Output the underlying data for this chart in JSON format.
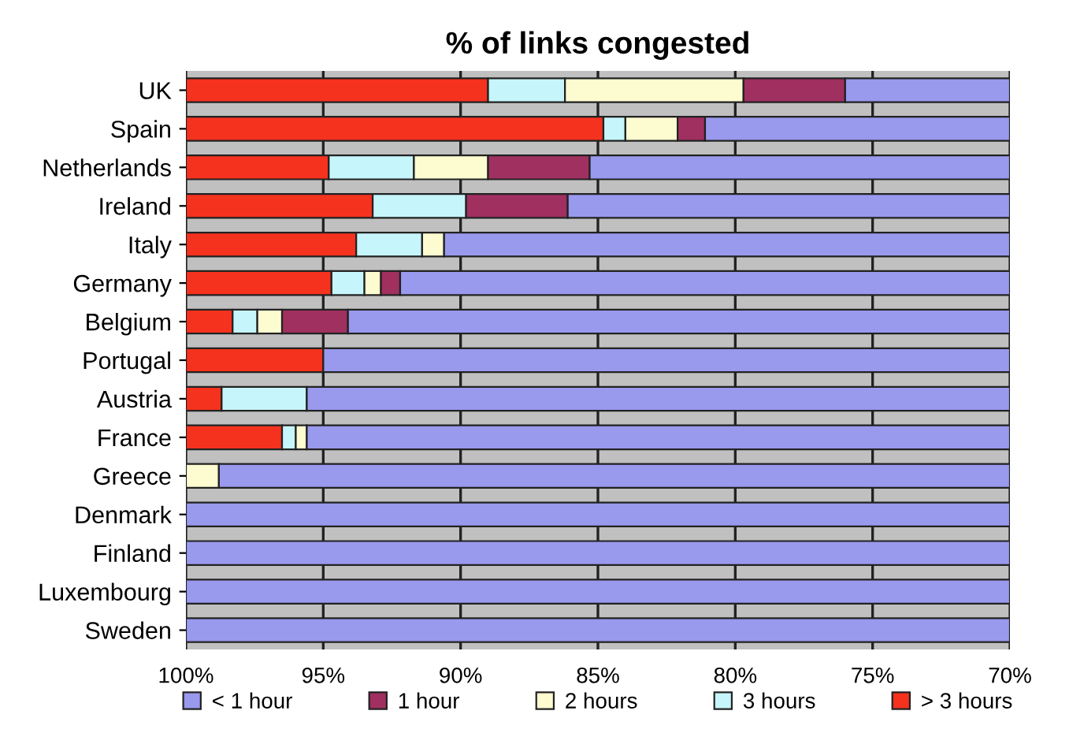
{
  "chart_data": {
    "type": "bar",
    "orientation": "horizontal",
    "title": "% of links congested",
    "categories": [
      "UK",
      "Spain",
      "Netherlands",
      "Ireland",
      "Italy",
      "Germany",
      "Belgium",
      "Portugal",
      "Austria",
      "France",
      "Greece",
      "Denmark",
      "Finland",
      "Luxembourg",
      "Sweden"
    ],
    "series": [
      {
        "name": "> 3 hours",
        "color": "#f5321e",
        "values": [
          11.0,
          15.2,
          5.2,
          6.8,
          6.2,
          5.3,
          1.7,
          5.0,
          1.3,
          3.5,
          null,
          null,
          null,
          null,
          null
        ],
        "base": [
          89.0,
          84.8,
          94.8,
          93.2,
          93.8,
          94.7,
          98.3,
          95.0,
          98.7,
          96.5,
          null,
          null,
          null,
          null,
          null
        ]
      },
      {
        "name": "3 hours",
        "color": "#c6f6fb",
        "values": [
          2.8,
          0.8,
          3.1,
          3.4,
          2.4,
          1.2,
          0.9,
          null,
          3.1,
          0.5,
          null,
          null,
          null,
          null,
          null
        ],
        "base": [
          86.2,
          84.0,
          91.7,
          89.8,
          91.4,
          93.5,
          97.4,
          null,
          95.6,
          96.0,
          null,
          null,
          null,
          null,
          null
        ]
      },
      {
        "name": "2 hours",
        "color": "#fdfbd0",
        "values": [
          6.5,
          1.9,
          2.7,
          null,
          0.8,
          0.6,
          0.9,
          null,
          null,
          0.4,
          1.2,
          null,
          null,
          null,
          null
        ],
        "base": [
          79.7,
          82.1,
          89.0,
          null,
          90.6,
          92.9,
          96.5,
          null,
          null,
          95.6,
          98.8,
          null,
          null,
          null,
          null
        ]
      },
      {
        "name": "1 hour",
        "color": "#a03060",
        "values": [
          3.7,
          1.0,
          3.7,
          3.7,
          null,
          0.7,
          2.4,
          null,
          null,
          null,
          null,
          null,
          null,
          null,
          null
        ],
        "base": [
          76.0,
          81.1,
          85.3,
          86.1,
          null,
          92.2,
          94.1,
          null,
          null,
          null,
          null,
          null,
          null,
          null,
          null
        ]
      },
      {
        "name": "< 1 hour",
        "color": "#9999ee",
        "values": [
          6.0,
          11.1,
          15.3,
          16.1,
          20.6,
          22.2,
          24.1,
          25.0,
          25.6,
          25.6,
          28.8,
          30,
          30,
          30,
          30
        ],
        "base": [
          70,
          70,
          70,
          70,
          70,
          70,
          70,
          70,
          70,
          70,
          70,
          70,
          70,
          70,
          70
        ]
      }
    ],
    "xlim": [
      100,
      70
    ],
    "xticks": [
      {
        "value": 100,
        "label": "100%"
      },
      {
        "value": 95,
        "label": "95%"
      },
      {
        "value": 90,
        "label": "90%"
      },
      {
        "value": 85,
        "label": "85%"
      },
      {
        "value": 80,
        "label": "80%"
      },
      {
        "value": 75,
        "label": "75%"
      },
      {
        "value": 70,
        "label": "70%"
      }
    ],
    "grid": "x",
    "legend": "bottom"
  }
}
